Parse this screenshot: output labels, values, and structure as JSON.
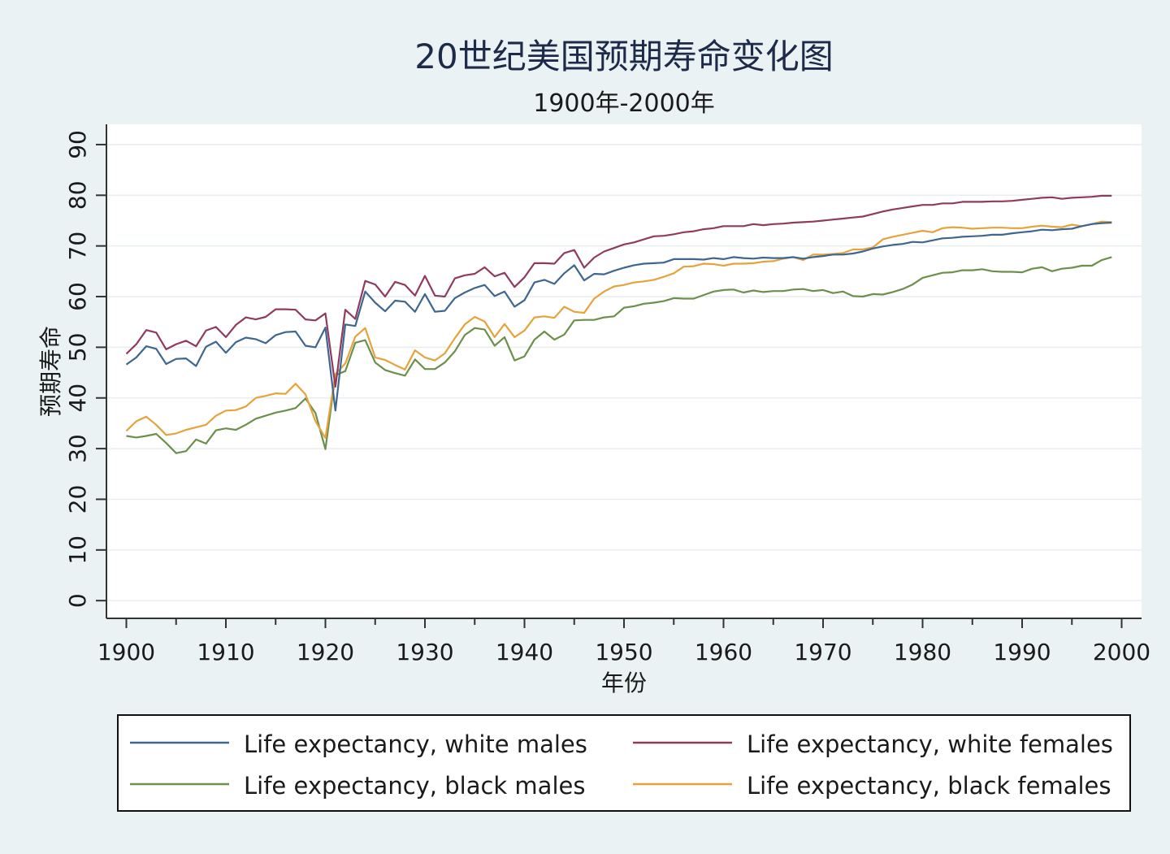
{
  "chart_data": {
    "type": "line",
    "title": "20世纪美国预期寿命变化图",
    "subtitle": "1900年-2000年",
    "xlabel": "年份",
    "ylabel": "预期寿命",
    "xlim": [
      1898,
      2002
    ],
    "ylim": [
      -3.5,
      94
    ],
    "x_ticks": [
      1900,
      1910,
      1920,
      1930,
      1940,
      1950,
      1960,
      1970,
      1980,
      1990,
      2000
    ],
    "y_ticks": [
      0,
      10,
      20,
      30,
      40,
      50,
      60,
      70,
      80,
      90
    ],
    "grid": "horizontal",
    "legend_position": "bottom",
    "legend_columns": 2,
    "x": [
      1900,
      1901,
      1902,
      1903,
      1904,
      1905,
      1906,
      1907,
      1908,
      1909,
      1910,
      1911,
      1912,
      1913,
      1914,
      1915,
      1916,
      1917,
      1918,
      1919,
      1920,
      1921,
      1922,
      1923,
      1924,
      1925,
      1926,
      1927,
      1928,
      1929,
      1930,
      1931,
      1932,
      1933,
      1934,
      1935,
      1936,
      1937,
      1938,
      1939,
      1940,
      1941,
      1942,
      1943,
      1944,
      1945,
      1946,
      1947,
      1948,
      1949,
      1950,
      1951,
      1952,
      1953,
      1954,
      1955,
      1956,
      1957,
      1958,
      1959,
      1960,
      1961,
      1962,
      1963,
      1964,
      1965,
      1966,
      1967,
      1968,
      1969,
      1970,
      1971,
      1972,
      1973,
      1974,
      1975,
      1976,
      1977,
      1978,
      1979,
      1980,
      1981,
      1982,
      1983,
      1984,
      1985,
      1986,
      1987,
      1988,
      1989,
      1990,
      1991,
      1992,
      1993,
      1994,
      1995,
      1996,
      1997,
      1998,
      1999
    ],
    "series": [
      {
        "name": "Life expectancy, white males",
        "color": "#3e6690",
        "values": [
          46.6,
          48.0,
          50.2,
          49.7,
          46.7,
          47.7,
          47.8,
          46.3,
          50.1,
          51.1,
          48.9,
          51.0,
          51.9,
          51.6,
          50.8,
          52.4,
          53.0,
          53.1,
          50.3,
          50.0,
          53.9,
          37.5,
          54.5,
          54.2,
          61.0,
          58.8,
          57.1,
          59.2,
          59.0,
          57.0,
          60.5,
          57.0,
          57.2,
          59.7,
          60.8,
          61.7,
          62.3,
          60.1,
          61.0,
          58.0,
          59.3,
          62.8,
          63.3,
          62.5,
          64.6,
          66.2,
          63.2,
          64.5,
          64.4,
          65.1,
          65.7,
          66.2,
          66.5,
          66.6,
          66.7,
          67.4,
          67.4,
          67.4,
          67.3,
          67.6,
          67.4,
          67.8,
          67.6,
          67.5,
          67.7,
          67.6,
          67.6,
          67.8,
          67.5,
          67.8,
          68.0,
          68.3,
          68.3,
          68.5,
          68.9,
          69.5,
          69.9,
          70.2,
          70.4,
          70.8,
          70.7,
          71.1,
          71.5,
          71.6,
          71.8,
          71.9,
          72.0,
          72.2,
          72.2,
          72.5,
          72.7,
          72.9,
          73.2,
          73.1,
          73.3,
          73.4,
          73.9,
          74.3,
          74.5,
          74.6
        ]
      },
      {
        "name": "Life expectancy, white females",
        "color": "#903b5d",
        "values": [
          48.7,
          50.6,
          53.4,
          52.9,
          49.6,
          50.6,
          51.3,
          50.2,
          53.3,
          54.0,
          52.0,
          54.4,
          55.9,
          55.5,
          56.0,
          57.5,
          57.5,
          57.4,
          55.5,
          55.3,
          56.7,
          42.2,
          57.4,
          55.6,
          63.1,
          62.4,
          60.0,
          62.9,
          62.3,
          60.2,
          64.1,
          60.2,
          60.0,
          63.6,
          64.2,
          64.5,
          65.8,
          64.0,
          64.7,
          61.9,
          63.8,
          66.6,
          66.6,
          66.5,
          68.6,
          69.2,
          65.7,
          67.7,
          68.9,
          69.6,
          70.3,
          70.7,
          71.3,
          71.9,
          72.0,
          72.3,
          72.7,
          72.9,
          73.3,
          73.5,
          73.9,
          73.9,
          73.9,
          74.3,
          74.1,
          74.3,
          74.4,
          74.6,
          74.7,
          74.8,
          75.0,
          75.2,
          75.4,
          75.6,
          75.8,
          76.3,
          76.8,
          77.2,
          77.5,
          77.8,
          78.1,
          78.1,
          78.4,
          78.4,
          78.7,
          78.7,
          78.7,
          78.8,
          78.8,
          78.9,
          79.1,
          79.3,
          79.5,
          79.6,
          79.3,
          79.5,
          79.6,
          79.7,
          79.9,
          79.9
        ]
      },
      {
        "name": "Life expectancy, black males",
        "color": "#6d8f4c",
        "values": [
          32.5,
          32.2,
          32.5,
          32.9,
          31.1,
          29.1,
          29.5,
          31.8,
          31.0,
          33.6,
          34.0,
          33.7,
          34.7,
          35.9,
          36.5,
          37.1,
          37.5,
          38.0,
          39.9,
          37.0,
          29.9,
          44.5,
          45.3,
          50.9,
          51.4,
          47.0,
          45.5,
          44.9,
          44.4,
          47.6,
          45.7,
          45.7,
          47.0,
          49.2,
          52.4,
          53.8,
          53.5,
          50.3,
          52.0,
          47.4,
          48.2,
          51.5,
          53.1,
          51.5,
          52.5,
          55.3,
          55.4,
          55.4,
          55.9,
          56.1,
          57.8,
          58.1,
          58.6,
          58.8,
          59.1,
          59.7,
          59.6,
          59.6,
          60.3,
          61.0,
          61.3,
          61.4,
          60.8,
          61.2,
          60.9,
          61.1,
          61.1,
          61.4,
          61.5,
          61.1,
          61.3,
          60.7,
          61.0,
          60.1,
          60.0,
          60.5,
          60.4,
          60.9,
          61.5,
          62.4,
          63.7,
          64.2,
          64.7,
          64.8,
          65.2,
          65.2,
          65.4,
          65.0,
          64.9,
          64.9,
          64.8,
          65.5,
          65.8,
          65.0,
          65.5,
          65.7,
          66.1,
          66.1,
          67.2,
          67.8
        ]
      },
      {
        "name": "Life expectancy, black females",
        "color": "#e6a33b",
        "values": [
          33.5,
          35.4,
          36.3,
          34.7,
          32.7,
          33.0,
          33.7,
          34.2,
          34.7,
          36.5,
          37.5,
          37.6,
          38.3,
          40.0,
          40.4,
          40.9,
          40.8,
          42.8,
          40.7,
          35.4,
          32.1,
          44.7,
          46.8,
          52.1,
          53.8,
          48.0,
          47.5,
          46.5,
          45.6,
          49.4,
          48.0,
          47.4,
          48.8,
          51.8,
          54.5,
          56.0,
          55.1,
          52.0,
          54.6,
          52.0,
          53.3,
          55.9,
          56.1,
          55.8,
          58.0,
          57.0,
          56.8,
          59.6,
          61.0,
          62.0,
          62.3,
          62.8,
          63.0,
          63.3,
          63.9,
          64.6,
          65.9,
          66.0,
          66.5,
          66.4,
          66.1,
          66.5,
          66.5,
          66.6,
          66.9,
          67.0,
          67.5,
          67.8,
          67.2,
          68.3,
          68.3,
          68.4,
          68.6,
          69.3,
          69.3,
          69.7,
          71.3,
          71.8,
          72.2,
          72.6,
          73.0,
          72.7,
          73.5,
          73.7,
          73.6,
          73.4,
          73.5,
          73.6,
          73.6,
          73.5,
          73.5,
          73.8,
          74.0,
          73.8,
          73.7,
          74.2,
          73.9,
          74.3,
          74.8,
          74.7
        ]
      }
    ]
  }
}
